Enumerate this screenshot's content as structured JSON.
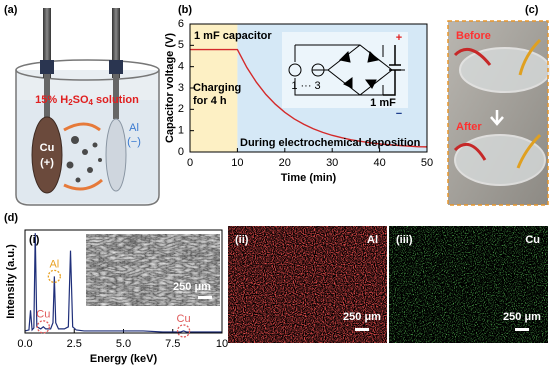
{
  "figure_labels": {
    "a": "(a)",
    "b": "(b)",
    "c": "(c)",
    "d": "(d)"
  },
  "panel_a": {
    "solution_parts": [
      "15% H",
      "2",
      "SO",
      "4",
      " solution"
    ],
    "electrode_left": {
      "label": "Cu",
      "sign": "(+)"
    },
    "electrode_right": {
      "label": "Al",
      "sign": "(−)"
    }
  },
  "panel_c": {
    "before": "Before",
    "after": "After"
  },
  "panel_d": {
    "map_ii": {
      "label": "(ii)",
      "element": "Al",
      "scale_bar": "250 μm"
    },
    "map_iii": {
      "label": "(iii)",
      "element": "Cu",
      "scale_bar": "250 μm"
    }
  },
  "chart_data": [
    {
      "type": "line",
      "ylabel": "Capacitor voltage (V)",
      "xlabel": "Time (min)",
      "x": [
        0,
        2,
        4,
        6,
        8,
        10,
        12,
        14,
        16,
        18,
        20,
        22,
        24,
        26,
        28,
        30,
        32,
        34,
        36,
        38,
        40,
        42,
        44,
        46,
        48,
        50
      ],
      "values": [
        4.8,
        4.8,
        4.8,
        4.8,
        4.8,
        4.8,
        3.96,
        3.27,
        2.7,
        2.24,
        1.86,
        1.55,
        1.3,
        1.09,
        0.92,
        0.78,
        0.67,
        0.57,
        0.5,
        0.43,
        0.38,
        0.34,
        0.31,
        0.28,
        0.25,
        0.24
      ],
      "color": "#d42a2a",
      "xlim": [
        0,
        50
      ],
      "ylim": [
        0,
        6
      ],
      "xticks": [
        0,
        10,
        20,
        30,
        40,
        50
      ],
      "yticks": [
        0,
        1,
        2,
        3,
        4,
        5,
        6
      ],
      "regions": [
        {
          "from": 0,
          "to": 10,
          "color": "#fdf0c4"
        },
        {
          "from": 10,
          "to": 50,
          "color": "#d5e8f6"
        }
      ],
      "annotations": {
        "capacitor": "1 mF capacitor",
        "charging": [
          "Charging",
          "for 4 h"
        ],
        "deposition": "During electrochemical deposition"
      },
      "circuit": {
        "sources": "1 ··· 3",
        "capacitor": "1 mF",
        "plus": "+",
        "minus": "−"
      }
    },
    {
      "type": "line",
      "panel": "(i)",
      "ylabel": "Intensity (a.u.)",
      "xlabel": "Energy (keV)",
      "x": [
        0,
        0.2,
        0.28,
        0.36,
        0.45,
        0.52,
        0.6,
        0.8,
        0.93,
        1.05,
        1.3,
        1.42,
        1.49,
        1.56,
        1.7,
        2.0,
        2.2,
        2.31,
        2.42,
        2.6,
        3.0,
        4,
        5,
        6,
        7,
        7.9,
        8.05,
        8.2,
        9,
        10
      ],
      "values": [
        0.02,
        0.03,
        0.22,
        0.03,
        0.05,
        0.97,
        0.06,
        0.04,
        0.06,
        0.04,
        0.04,
        0.1,
        0.55,
        0.1,
        0.04,
        0.04,
        0.06,
        0.8,
        0.06,
        0.03,
        0.02,
        0.02,
        0.02,
        0.02,
        0.01,
        0.01,
        0.02,
        0.01,
        0.01,
        0.01
      ],
      "color": "#1f2f7a",
      "xlim": [
        0,
        10
      ],
      "ylim": [
        0,
        1
      ],
      "xticks": [
        {
          "value": 0,
          "label": "0.0"
        },
        {
          "value": 2.5,
          "label": "2.5"
        },
        {
          "value": 5,
          "label": "5.0"
        },
        {
          "value": 7.5,
          "label": "7.5"
        },
        10
      ],
      "peak_labels": [
        {
          "text": "Cu",
          "x": 0.93,
          "color": "#e05a5a"
        },
        {
          "text": "Al",
          "x": 1.49,
          "color": "#e8a020"
        },
        {
          "text": "Cu",
          "x": 8.05,
          "color": "#e05a5a"
        }
      ],
      "inset_scale_bar": "250 μm"
    }
  ]
}
